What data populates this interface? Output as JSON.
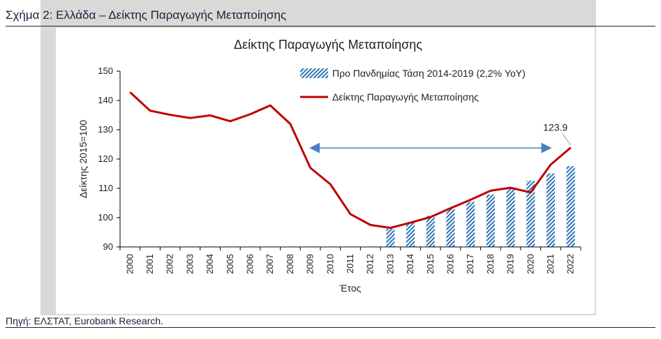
{
  "figure": {
    "caption": "Σχήμα 2: Ελλάδα – Δείκτης Παραγωγής Μεταποίησης",
    "source": "Πηγή: ΕΛΣΤΑΤ, Eurobank Research."
  },
  "colors": {
    "line": "#c00000",
    "trend_bar": "#2e75b6",
    "arrow": "#4a7fc1",
    "axis": "#000000"
  },
  "chart_data": {
    "type": "line",
    "title": "Δείκτης Παραγωγής Μεταποίησης",
    "xlabel": "Έτος",
    "ylabel": "Δείκτης 2015=100",
    "ylim": [
      90,
      150
    ],
    "yticks": [
      90,
      100,
      110,
      120,
      130,
      140,
      150
    ],
    "categories": [
      "2000",
      "2001",
      "2002",
      "2003",
      "2004",
      "2005",
      "2006",
      "2007",
      "2008",
      "2009",
      "2010",
      "2011",
      "2012",
      "2013",
      "2014",
      "2015",
      "2016",
      "2017",
      "2018",
      "2019",
      "2020",
      "2021",
      "2022"
    ],
    "grid": false,
    "legend_position": "top-right",
    "series": [
      {
        "name": "Προ Πανδημίας Τάση 2014-2019 (2,2% YoY)",
        "type": "bar",
        "pattern": "hatched",
        "values": [
          null,
          null,
          null,
          null,
          null,
          null,
          null,
          null,
          null,
          null,
          null,
          null,
          null,
          96.2,
          98.2,
          100.6,
          103.1,
          105.4,
          107.9,
          110.3,
          112.6,
          115.1,
          117.6
        ]
      },
      {
        "name": "Δείκτης Παραγωγής Μεταποίησης",
        "type": "line",
        "values": [
          142.8,
          136.5,
          135.1,
          134.0,
          134.9,
          132.9,
          135.3,
          138.3,
          132.0,
          117.0,
          111.4,
          101.2,
          97.5,
          96.5,
          98.3,
          100.2,
          103.2,
          106.1,
          109.2,
          110.2,
          108.6,
          118.1,
          123.9
        ]
      }
    ],
    "annotations": [
      {
        "text": "123.9",
        "category": "2022",
        "value": 123.9
      }
    ],
    "arrow": {
      "from": "2009",
      "to": "2021",
      "value": 124.5,
      "double_headed": true
    }
  }
}
